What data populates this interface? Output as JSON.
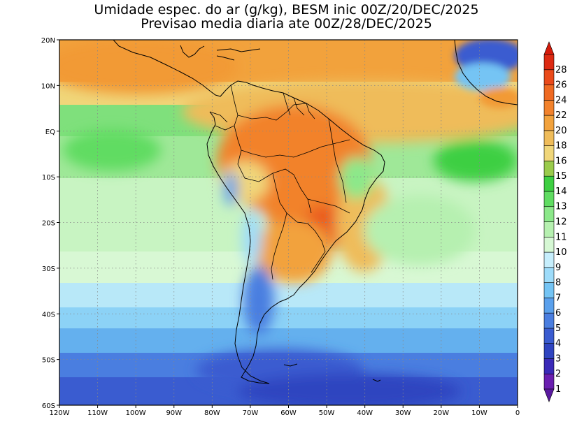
{
  "title": {
    "line1": "Umidade espec. do ar (g/kg), BESM inic 00Z/20/DEC/2025",
    "line2": "Previsao media diaria ate 00Z/28/DEC/2025"
  },
  "map": {
    "lon_range": [
      -120,
      0
    ],
    "lat_range": [
      -60,
      20
    ],
    "lon_ticks": [
      {
        "value": -120,
        "label": "120W"
      },
      {
        "value": -110,
        "label": "110W"
      },
      {
        "value": -100,
        "label": "100W"
      },
      {
        "value": -90,
        "label": "90W"
      },
      {
        "value": -80,
        "label": "80W"
      },
      {
        "value": -70,
        "label": "70W"
      },
      {
        "value": -60,
        "label": "60W"
      },
      {
        "value": -50,
        "label": "50W"
      },
      {
        "value": -40,
        "label": "40W"
      },
      {
        "value": -30,
        "label": "30W"
      },
      {
        "value": -20,
        "label": "20W"
      },
      {
        "value": -10,
        "label": "10W"
      },
      {
        "value": 0,
        "label": "0"
      }
    ],
    "lat_ticks": [
      {
        "value": 20,
        "label": "20N"
      },
      {
        "value": 10,
        "label": "10N"
      },
      {
        "value": 0,
        "label": "EQ"
      },
      {
        "value": -10,
        "label": "10S"
      },
      {
        "value": -20,
        "label": "20S"
      },
      {
        "value": -30,
        "label": "30S"
      },
      {
        "value": -40,
        "label": "40S"
      },
      {
        "value": -50,
        "label": "50S"
      },
      {
        "value": -60,
        "label": "60S"
      }
    ],
    "grid": "dotted"
  },
  "colorbar": {
    "levels": [
      {
        "label": "1",
        "color": "#6a1fb0"
      },
      {
        "label": "2",
        "color": "#3a2ab8"
      },
      {
        "label": "3",
        "color": "#2f44c0"
      },
      {
        "label": "4",
        "color": "#3a5cd0"
      },
      {
        "label": "5",
        "color": "#4a7ee0"
      },
      {
        "label": "6",
        "color": "#5aa0ec"
      },
      {
        "label": "7",
        "color": "#74c4f4"
      },
      {
        "label": "8",
        "color": "#9edcfa"
      },
      {
        "label": "9",
        "color": "#c6eefc"
      },
      {
        "label": "10",
        "color": "#d6f8d4"
      },
      {
        "label": "11",
        "color": "#b6f0b0"
      },
      {
        "label": "12",
        "color": "#8ce88a"
      },
      {
        "label": "13",
        "color": "#60dc62"
      },
      {
        "label": "14",
        "color": "#3ecf42"
      },
      {
        "label": "15",
        "color": "#9acb4c"
      },
      {
        "label": "16",
        "color": "#f0d67a"
      },
      {
        "label": "18",
        "color": "#efbc5a"
      },
      {
        "label": "20",
        "color": "#f2a23c"
      },
      {
        "label": "22",
        "color": "#f2822c"
      },
      {
        "label": "24",
        "color": "#ef6a22"
      },
      {
        "label": "26",
        "color": "#ea4a1a"
      },
      {
        "label": "28",
        "color": "#dd2a12"
      }
    ],
    "under_color": "#5a1aa0",
    "over_color": "#d61a0a"
  }
}
